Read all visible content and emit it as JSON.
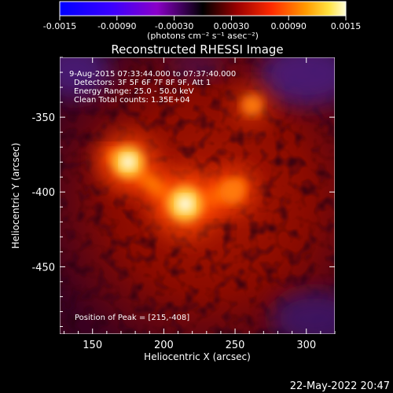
{
  "colorbar": {
    "ticks": [
      "-0.0015",
      "-0.00090",
      "-0.00030",
      "0.00030",
      "0.00090",
      "0.0015"
    ],
    "unit_label": "(photons cm⁻² s⁻¹ asec⁻²)",
    "range": [
      -0.0015,
      0.0015
    ]
  },
  "chart_data": {
    "type": "heatmap",
    "title": "Reconstructed RHESSI Image",
    "xlabel": "Heliocentric X (arcsec)",
    "ylabel": "Heliocentric Y (arcsec)",
    "xlim": [
      127,
      320
    ],
    "ylim": [
      -495,
      -310
    ],
    "x_ticks": [
      150,
      200,
      250,
      300
    ],
    "y_ticks": [
      -350,
      -400,
      -450
    ],
    "annotations": [
      "9-Aug-2015 07:33:44.000 to 07:37:40.000",
      "Detectors: 3F 5F 6F 7F 8F 9F, Att 1",
      "Energy Range: 25.0 - 50.0 keV",
      "Clean      Total counts: 1.35E+04"
    ],
    "peak_label": "Position of Peak = [215,-408]",
    "peak": {
      "x": 215,
      "y": -408
    },
    "sources": [
      {
        "x": 215,
        "y": -408,
        "amp": 1.0
      },
      {
        "x": 175,
        "y": -380,
        "amp": 0.85
      },
      {
        "x": 248,
        "y": -400,
        "amp": 0.55
      },
      {
        "x": 262,
        "y": -342,
        "amp": 0.45
      }
    ]
  },
  "footer": {
    "timestamp": "22-May-2022 20:47"
  }
}
